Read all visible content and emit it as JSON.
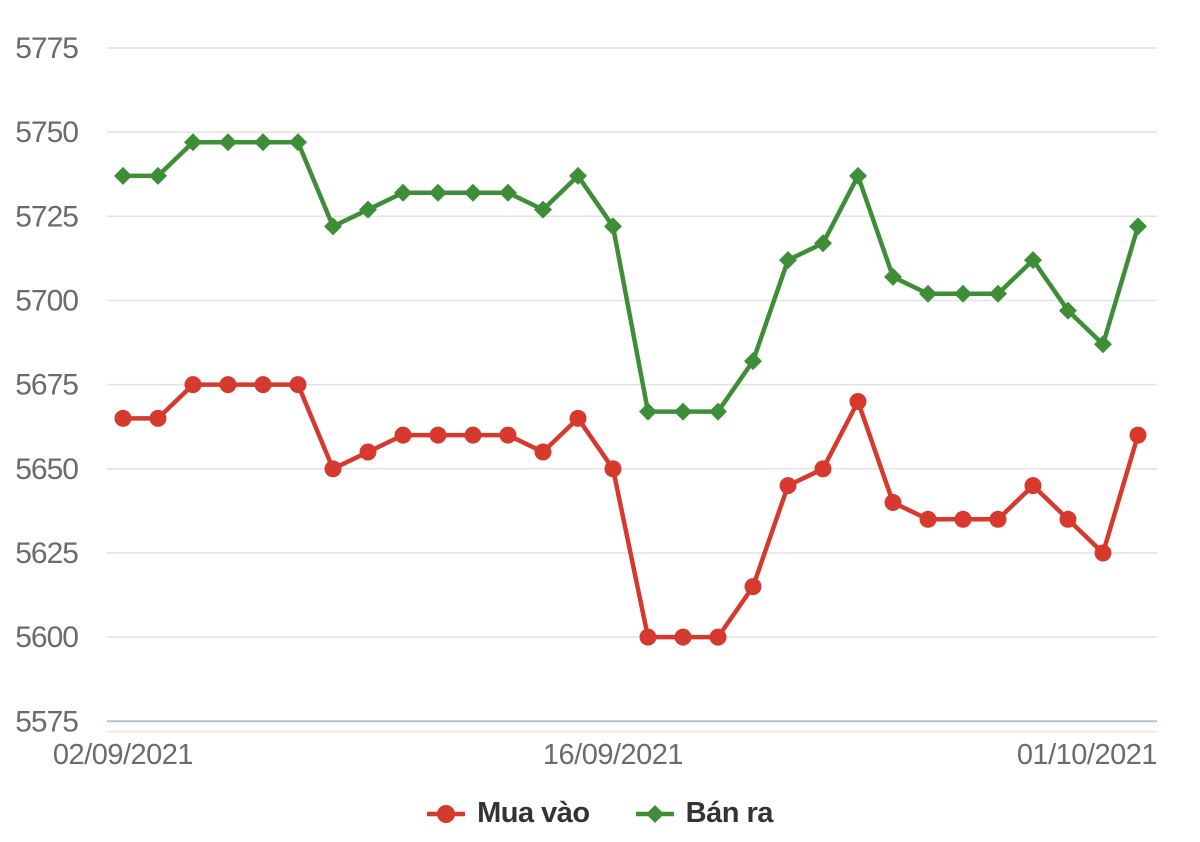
{
  "chart_data": {
    "type": "line",
    "title": "",
    "xlabel": "",
    "ylabel": "",
    "ylim": [
      5575,
      5775
    ],
    "ytick_step": 25,
    "yticks": [
      5575,
      5600,
      5625,
      5650,
      5675,
      5700,
      5725,
      5750,
      5775
    ],
    "x_ticks": [
      {
        "label": "02/09/2021",
        "index": 0
      },
      {
        "label": "16/09/2021",
        "index": 14
      },
      {
        "label": "01/10/2021",
        "index": 29
      }
    ],
    "dates": [
      "02/09/2021",
      "03/09/2021",
      "04/09/2021",
      "05/09/2021",
      "06/09/2021",
      "07/09/2021",
      "08/09/2021",
      "09/09/2021",
      "10/09/2021",
      "11/09/2021",
      "12/09/2021",
      "13/09/2021",
      "14/09/2021",
      "15/09/2021",
      "16/09/2021",
      "17/09/2021",
      "18/09/2021",
      "19/09/2021",
      "20/09/2021",
      "21/09/2021",
      "22/09/2021",
      "23/09/2021",
      "24/09/2021",
      "25/09/2021",
      "26/09/2021",
      "27/09/2021",
      "28/09/2021",
      "29/09/2021",
      "30/09/2021",
      "01/10/2021"
    ],
    "series": [
      {
        "name": "Mua vào",
        "marker": "circle",
        "color": "#d6392d",
        "values": [
          5665,
          5665,
          5675,
          5675,
          5675,
          5675,
          5650,
          5655,
          5660,
          5660,
          5660,
          5660,
          5655,
          5665,
          5650,
          5600,
          5600,
          5600,
          5615,
          5645,
          5650,
          5670,
          5640,
          5635,
          5635,
          5635,
          5645,
          5635,
          5625,
          5660
        ]
      },
      {
        "name": "Bán ra",
        "marker": "diamond",
        "color": "#3e8e38",
        "values": [
          5737,
          5737,
          5747,
          5747,
          5747,
          5747,
          5722,
          5727,
          5732,
          5732,
          5732,
          5732,
          5727,
          5737,
          5722,
          5667,
          5667,
          5667,
          5682,
          5712,
          5717,
          5737,
          5707,
          5702,
          5702,
          5702,
          5712,
          5697,
          5687,
          5722
        ]
      }
    ],
    "grid": "horizontal",
    "legend_position": "bottom-center"
  },
  "colors": {
    "grid": "#e4e4e4",
    "bottom_gridline": "#b9bfd2",
    "axis_accent_line": "#f6e7de",
    "axis_text": "#6b6b6b",
    "legend_text": "#333333",
    "background": "#ffffff"
  }
}
